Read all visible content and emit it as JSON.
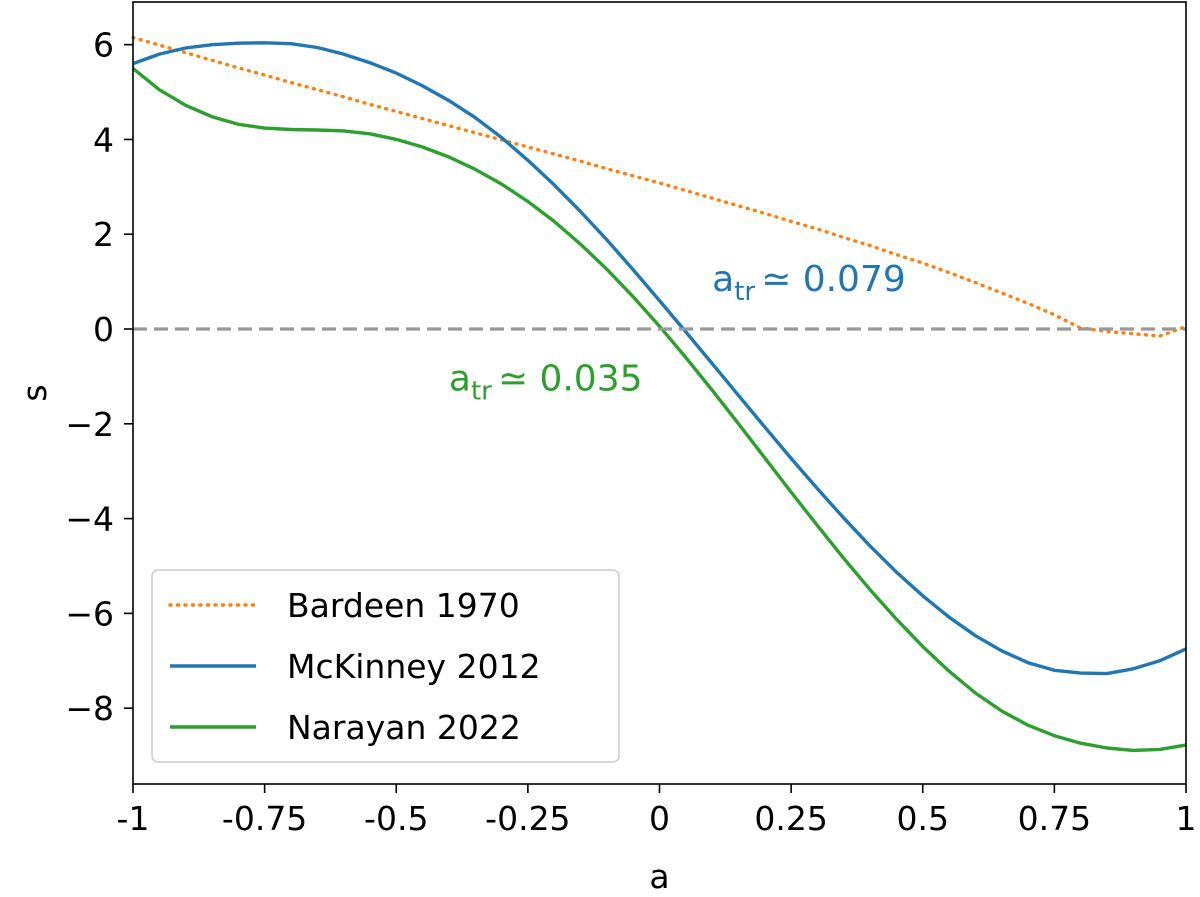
{
  "chart_data": {
    "type": "line",
    "title": "",
    "xlabel": "a",
    "ylabel": "s",
    "xlim": [
      -1,
      1
    ],
    "ylim": [
      -9.6,
      6.9
    ],
    "xticks": [
      -1,
      -0.75,
      -0.5,
      -0.25,
      0,
      0.25,
      0.5,
      0.75,
      1
    ],
    "xtick_labels": [
      "-1",
      "-0.75",
      "-0.5",
      "-0.25",
      "0",
      "0.25",
      "0.5",
      "0.75",
      "1"
    ],
    "yticks": [
      6,
      4,
      2,
      0,
      -2,
      -4,
      -6,
      -8
    ],
    "ytick_labels": [
      "6",
      "4",
      "2",
      "0",
      "−2",
      "−4",
      "−6",
      "−8"
    ],
    "grid": false,
    "legend_position": "lower-left",
    "zero_line": {
      "y": 0,
      "style": "dashed",
      "color": "#999999"
    },
    "x": [
      -1,
      -0.95,
      -0.9,
      -0.85,
      -0.8,
      -0.75,
      -0.7,
      -0.65,
      -0.6,
      -0.55,
      -0.5,
      -0.45,
      -0.4,
      -0.35,
      -0.3,
      -0.25,
      -0.2,
      -0.15,
      -0.1,
      -0.05,
      0,
      0.05,
      0.1,
      0.15,
      0.2,
      0.25,
      0.3,
      0.35,
      0.4,
      0.45,
      0.5,
      0.55,
      0.6,
      0.65,
      0.7,
      0.75,
      0.8,
      0.85,
      0.9,
      0.95,
      1
    ],
    "series": [
      {
        "name": "Bardeen 1970",
        "color": "#ff7f0e",
        "style": "dotted",
        "values": [
          6.15,
          5.99,
          5.83,
          5.67,
          5.51,
          5.36,
          5.2,
          5.05,
          4.9,
          4.74,
          4.59,
          4.44,
          4.29,
          4.14,
          3.99,
          3.84,
          3.69,
          3.54,
          3.38,
          3.23,
          3.08,
          2.92,
          2.76,
          2.6,
          2.44,
          2.27,
          2.11,
          1.93,
          1.76,
          1.57,
          1.39,
          1.19,
          0.98,
          0.76,
          0.54,
          0.3,
          0.02,
          -0.05,
          -0.1,
          -0.15,
          0.05
        ]
      },
      {
        "name": "McKinney 2012",
        "color": "#1f77b4",
        "style": "solid",
        "values": [
          5.6,
          5.8,
          5.93,
          6.0,
          6.03,
          6.04,
          6.02,
          5.94,
          5.8,
          5.62,
          5.4,
          5.13,
          4.82,
          4.46,
          4.04,
          3.56,
          3.04,
          2.48,
          1.88,
          1.25,
          0.6,
          -0.06,
          -0.73,
          -1.4,
          -2.07,
          -2.73,
          -3.37,
          -3.99,
          -4.58,
          -5.13,
          -5.63,
          -6.08,
          -6.47,
          -6.79,
          -7.04,
          -7.2,
          -7.26,
          -7.27,
          -7.17,
          -7.0,
          -6.75
        ]
      },
      {
        "name": "Narayan 2022",
        "color": "#2ca02c",
        "style": "solid",
        "values": [
          5.5,
          5.05,
          4.72,
          4.48,
          4.32,
          4.24,
          4.21,
          4.2,
          4.18,
          4.12,
          4.0,
          3.84,
          3.63,
          3.37,
          3.06,
          2.69,
          2.27,
          1.79,
          1.26,
          0.68,
          0.06,
          -0.6,
          -1.29,
          -2.0,
          -2.72,
          -3.44,
          -4.15,
          -4.84,
          -5.5,
          -6.12,
          -6.7,
          -7.22,
          -7.68,
          -8.06,
          -8.36,
          -8.58,
          -8.74,
          -8.84,
          -8.89,
          -8.87,
          -8.78
        ]
      }
    ],
    "annotations": [
      {
        "base": "a",
        "sub": "tr",
        "text": "≃ 0.079",
        "x": 0.1,
        "y": 0.8,
        "color": "#1f77b4"
      },
      {
        "base": "a",
        "sub": "tr",
        "text": "≃ 0.035",
        "x": -0.4,
        "y": -1.3,
        "color": "#2ca02c"
      }
    ]
  }
}
